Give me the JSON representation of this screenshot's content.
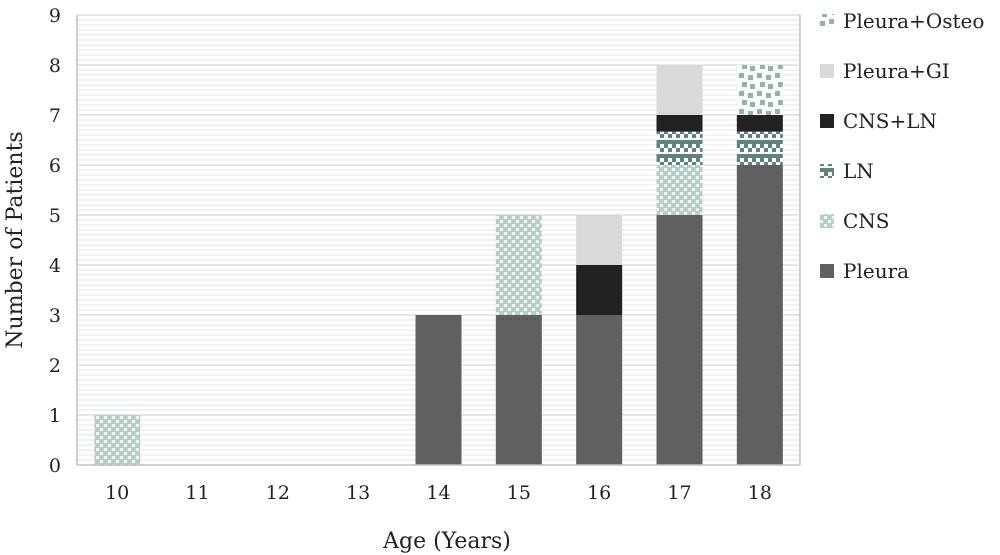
{
  "chart_data": {
    "type": "bar",
    "stacked": true,
    "xlabel": "Age (Years)",
    "ylabel": "Number of Patients",
    "categories": [
      "10",
      "11",
      "12",
      "13",
      "14",
      "15",
      "16",
      "17",
      "18"
    ],
    "ylim": [
      0,
      9
    ],
    "yticks": [
      "0",
      "1",
      "2",
      "3",
      "4",
      "5",
      "6",
      "7",
      "8",
      "9"
    ],
    "grid": true,
    "legend_position": "right",
    "series": [
      {
        "name": "Pleura",
        "values": [
          0,
          0,
          0,
          0,
          3,
          3,
          3,
          5,
          6
        ],
        "color": "#606060",
        "pattern": "solid"
      },
      {
        "name": "CNS",
        "values": [
          1,
          0,
          0,
          0,
          0,
          2,
          0,
          1,
          0
        ],
        "color": "#9fb8b2",
        "pattern": "dots"
      },
      {
        "name": "LN",
        "values": [
          0,
          0,
          0,
          0,
          0,
          0,
          0,
          0.667,
          0.667
        ],
        "color": "#5f8480",
        "pattern": "checker"
      },
      {
        "name": "CNS+LN",
        "values": [
          0,
          0,
          0,
          0,
          0,
          0,
          1,
          0.333,
          0.333
        ],
        "color": "#222222",
        "pattern": "solid"
      },
      {
        "name": "Pleura+GI",
        "values": [
          0,
          0,
          0,
          0,
          0,
          0,
          1,
          1,
          0
        ],
        "color": "#d9d9d9",
        "pattern": "solid"
      },
      {
        "name": "Pleura+Osteo",
        "values": [
          0,
          0,
          0,
          0,
          0,
          0,
          0,
          0,
          1
        ],
        "color": "#8fb3ad",
        "pattern": "scatter"
      }
    ]
  }
}
